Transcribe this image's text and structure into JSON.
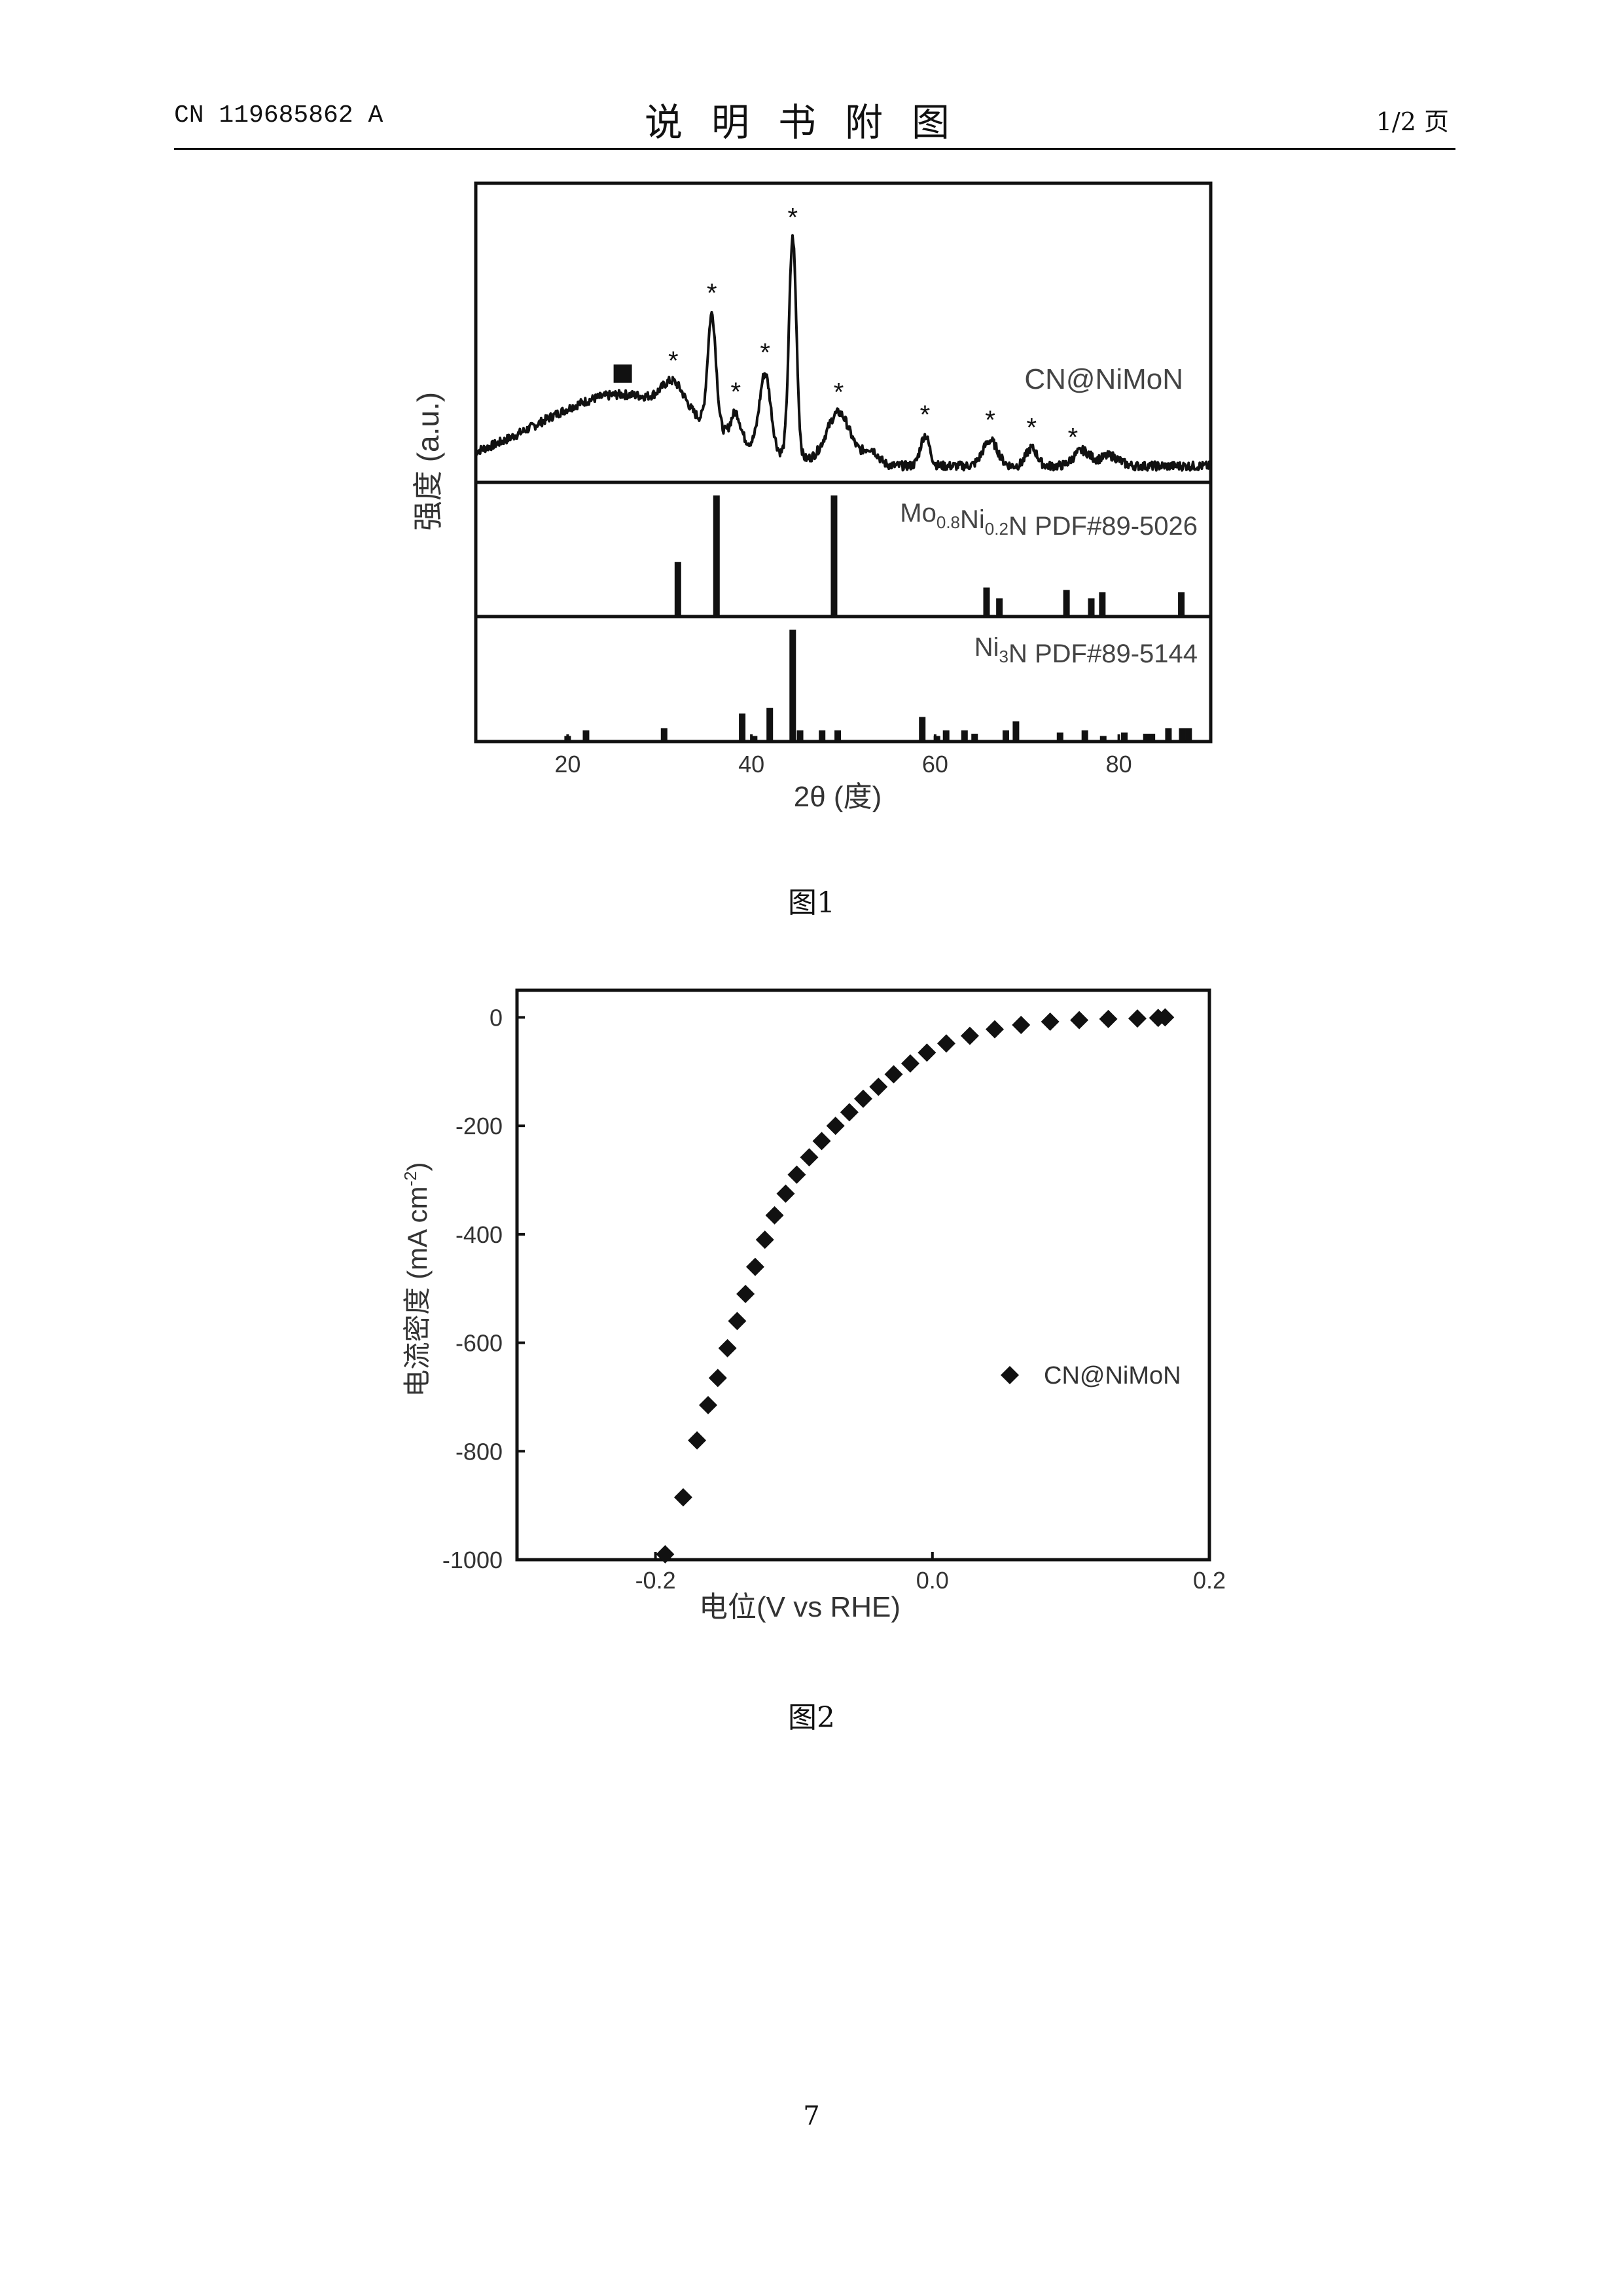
{
  "header": {
    "publication_number": "CN 119685862 A",
    "section_title": "说明书附图",
    "page_of": "1/2 页"
  },
  "figures": {
    "fig1": {
      "caption": "图1"
    },
    "fig2": {
      "caption": "图2"
    }
  },
  "page_number": "7",
  "chart_data": [
    {
      "type": "line",
      "subtype": "xrd-stacked",
      "xlabel": "2θ (度)",
      "ylabel": "强度 (a.u.)",
      "xlim": [
        10,
        90
      ],
      "xticks": [
        20,
        40,
        60,
        80
      ],
      "grid": false,
      "panels": [
        {
          "name": "CN@NiMoN",
          "label": "CN@NiMoN",
          "kind": "pattern",
          "peaks": [
            {
              "x": 26,
              "h": 0.28,
              "w": 9.0
            },
            {
              "x": 31.5,
              "h": 0.1,
              "w": 1.2
            },
            {
              "x": 35.7,
              "h": 0.44,
              "w": 0.45
            },
            {
              "x": 38.3,
              "h": 0.1,
              "w": 0.5
            },
            {
              "x": 41.5,
              "h": 0.3,
              "w": 0.6
            },
            {
              "x": 44.5,
              "h": 0.86,
              "w": 0.4
            },
            {
              "x": 49.5,
              "h": 0.2,
              "w": 1.3
            },
            {
              "x": 53.0,
              "h": 0.06,
              "w": 0.8
            },
            {
              "x": 58.9,
              "h": 0.12,
              "w": 0.5
            },
            {
              "x": 66.0,
              "h": 0.1,
              "w": 0.8
            },
            {
              "x": 70.5,
              "h": 0.07,
              "w": 0.6
            },
            {
              "x": 76.0,
              "h": 0.06,
              "w": 0.9
            },
            {
              "x": 79.0,
              "h": 0.04,
              "w": 1.0
            }
          ],
          "markers": [
            {
              "x": 26,
              "symbol": "■"
            },
            {
              "x": 31.5,
              "symbol": "*"
            },
            {
              "x": 35.7,
              "symbol": "*"
            },
            {
              "x": 38.3,
              "symbol": "*"
            },
            {
              "x": 41.5,
              "symbol": "*"
            },
            {
              "x": 44.5,
              "symbol": "*"
            },
            {
              "x": 49.5,
              "symbol": "*"
            },
            {
              "x": 58.9,
              "symbol": "*"
            },
            {
              "x": 66.0,
              "symbol": "*"
            },
            {
              "x": 70.5,
              "symbol": "*"
            },
            {
              "x": 75.0,
              "symbol": "*"
            }
          ]
        },
        {
          "name": "Mo0.8Ni0.2N PDF#89-5026",
          "label": {
            "pre": "Mo",
            "sub1": "0.8",
            "mid": "Ni",
            "sub2": "0.2",
            "post": "N PDF#89-5026"
          },
          "kind": "sticks",
          "sticks": [
            {
              "x": 32.0,
              "y": 0.45
            },
            {
              "x": 36.2,
              "y": 1.0
            },
            {
              "x": 49.0,
              "y": 1.0
            },
            {
              "x": 65.6,
              "y": 0.24
            },
            {
              "x": 67.0,
              "y": 0.15
            },
            {
              "x": 74.3,
              "y": 0.22
            },
            {
              "x": 77.0,
              "y": 0.15
            },
            {
              "x": 78.2,
              "y": 0.2
            },
            {
              "x": 86.8,
              "y": 0.2
            }
          ]
        },
        {
          "name": "Ni3N PDF#89-5144",
          "label": {
            "pre": "Ni",
            "sub1": "3",
            "post": "N PDF#89-5144"
          },
          "kind": "sticks",
          "sticks": [
            {
              "x": 20.0,
              "y": 0.05
            },
            {
              "x": 22.0,
              "y": 0.1
            },
            {
              "x": 30.5,
              "y": 0.12
            },
            {
              "x": 39.0,
              "y": 0.25
            },
            {
              "x": 40.3,
              "y": 0.05
            },
            {
              "x": 42.0,
              "y": 0.3
            },
            {
              "x": 44.5,
              "y": 1.0
            },
            {
              "x": 45.3,
              "y": 0.1
            },
            {
              "x": 47.7,
              "y": 0.1
            },
            {
              "x": 49.4,
              "y": 0.1
            },
            {
              "x": 58.6,
              "y": 0.22
            },
            {
              "x": 60.2,
              "y": 0.05
            },
            {
              "x": 61.2,
              "y": 0.1
            },
            {
              "x": 63.2,
              "y": 0.1
            },
            {
              "x": 64.3,
              "y": 0.07
            },
            {
              "x": 67.7,
              "y": 0.1
            },
            {
              "x": 68.8,
              "y": 0.18
            },
            {
              "x": 73.6,
              "y": 0.08
            },
            {
              "x": 76.3,
              "y": 0.1
            },
            {
              "x": 78.3,
              "y": 0.05
            },
            {
              "x": 80.6,
              "y": 0.08
            },
            {
              "x": 83.0,
              "y": 0.07
            },
            {
              "x": 83.6,
              "y": 0.07
            },
            {
              "x": 85.4,
              "y": 0.12
            },
            {
              "x": 86.9,
              "y": 0.12
            },
            {
              "x": 87.6,
              "y": 0.12
            }
          ]
        }
      ]
    },
    {
      "type": "scatter",
      "xlabel": "电位(V vs RHE)",
      "ylabel": "电流密度 (mA cm",
      "ylabel_sup": "-2",
      "ylabel_close": ")",
      "xlim": [
        -0.3,
        0.2
      ],
      "ylim": [
        -1000,
        50
      ],
      "xticks": [
        -0.2,
        0.0,
        0.2
      ],
      "xtick_labels": [
        "-0.2",
        "0.0",
        "0.2"
      ],
      "yticks": [
        0,
        -200,
        -400,
        -600,
        -800,
        -1000
      ],
      "ytick_labels": [
        "0",
        "-200",
        "-400",
        "-600",
        "-800",
        "-1000"
      ],
      "grid": false,
      "legend_position": "right",
      "series": [
        {
          "name": "CN@NiMoN",
          "marker": "diamond",
          "x": [
            -0.193,
            -0.18,
            -0.17,
            -0.162,
            -0.155,
            -0.148,
            -0.141,
            -0.135,
            -0.128,
            -0.121,
            -0.114,
            -0.106,
            -0.098,
            -0.089,
            -0.08,
            -0.07,
            -0.06,
            -0.05,
            -0.039,
            -0.028,
            -0.016,
            -0.004,
            0.01,
            0.027,
            0.045,
            0.064,
            0.085,
            0.106,
            0.127,
            0.148,
            0.163,
            0.168
          ],
          "y": [
            -990,
            -885,
            -780,
            -715,
            -665,
            -610,
            -560,
            -510,
            -460,
            -410,
            -365,
            -325,
            -290,
            -258,
            -228,
            -200,
            -175,
            -150,
            -128,
            -105,
            -85,
            -65,
            -48,
            -34,
            -22,
            -14,
            -8,
            -5,
            -3,
            -2,
            -1,
            0
          ]
        }
      ]
    }
  ]
}
